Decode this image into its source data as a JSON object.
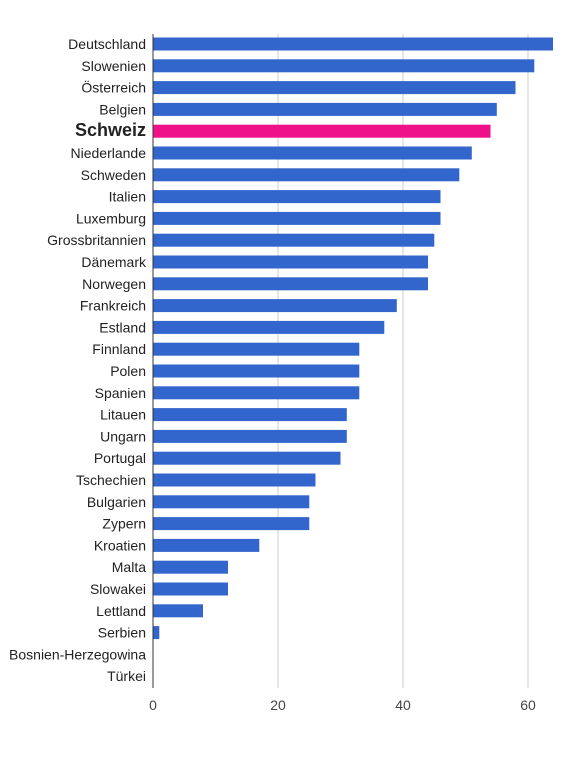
{
  "chart_data": {
    "type": "bar",
    "orientation": "horizontal",
    "categories": [
      "Deutschland",
      "Slowenien",
      "Österreich",
      "Belgien",
      "Schweiz",
      "Niederlande",
      "Schweden",
      "Italien",
      "Luxemburg",
      "Grossbritannien",
      "Dänemark",
      "Norwegen",
      "Frankreich",
      "Estland",
      "Finnland",
      "Polen",
      "Spanien",
      "Litauen",
      "Ungarn",
      "Portugal",
      "Tschechien",
      "Bulgarien",
      "Zypern",
      "Kroatien",
      "Malta",
      "Slowakei",
      "Lettland",
      "Serbien",
      "Bosnien-Herzegowina",
      "Türkei"
    ],
    "values": [
      64,
      61,
      58,
      55,
      54,
      51,
      49,
      46,
      46,
      45,
      44,
      44,
      39,
      37,
      33,
      33,
      33,
      31,
      31,
      30,
      26,
      25,
      25,
      17,
      12,
      12,
      8,
      1,
      0,
      0
    ],
    "highlight_category": "Schweiz",
    "xlim": [
      0,
      64
    ],
    "xticks": [
      0,
      20,
      40,
      60
    ],
    "grid": true,
    "colors": {
      "bar": "#3366cc",
      "highlight": "#ee1188",
      "grid": "#cccccc",
      "axis": "#333333"
    }
  }
}
